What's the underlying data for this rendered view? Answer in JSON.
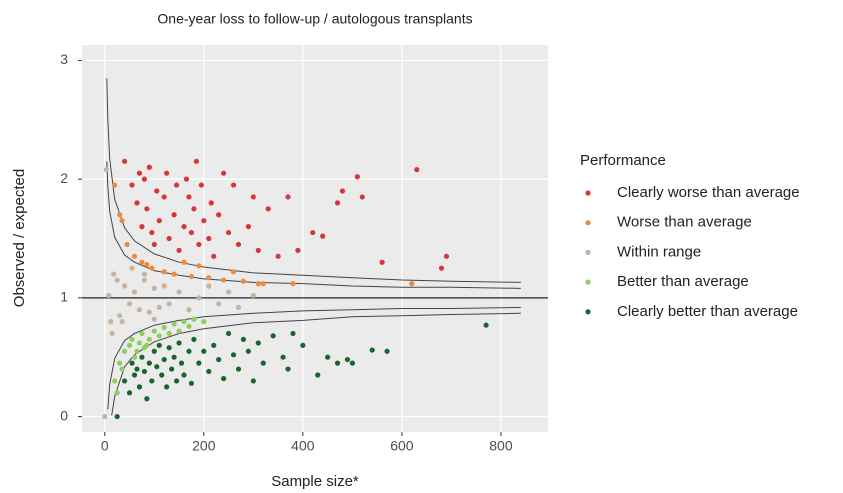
{
  "chart_data": {
    "type": "scatter",
    "title": "One-year loss to follow-up / autologous transplants",
    "x_label": "Sample size*",
    "y_label": "Observed / expected",
    "xlim": [
      -46,
      895
    ],
    "ylim": [
      -0.13,
      3.13
    ],
    "xticks": [
      0,
      200,
      400,
      600,
      800
    ],
    "yticks": [
      0,
      1,
      2,
      3
    ],
    "grid": true,
    "reference_line": 1,
    "legend": {
      "title": "Performance",
      "position": "right"
    },
    "series": [
      {
        "name": "Clearly worse than average",
        "color": "#d6363a",
        "x": [
          40,
          55,
          65,
          70,
          75,
          80,
          85,
          90,
          95,
          100,
          105,
          110,
          120,
          125,
          130,
          140,
          145,
          150,
          160,
          165,
          170,
          175,
          180,
          185,
          190,
          195,
          200,
          210,
          215,
          220,
          230,
          240,
          250,
          260,
          270,
          290,
          300,
          310,
          330,
          350,
          370,
          390,
          420,
          440,
          470,
          480,
          510,
          520,
          560,
          630,
          680,
          690
        ],
        "values": [
          2.15,
          1.95,
          1.8,
          2.05,
          1.6,
          2.0,
          1.75,
          2.1,
          1.55,
          1.45,
          1.9,
          1.65,
          1.85,
          2.05,
          1.5,
          1.7,
          1.95,
          1.4,
          1.6,
          2.0,
          1.85,
          1.55,
          1.75,
          2.15,
          1.45,
          1.95,
          1.65,
          1.5,
          1.8,
          1.35,
          1.7,
          2.05,
          1.55,
          1.95,
          1.45,
          1.6,
          1.85,
          1.4,
          1.75,
          1.35,
          1.85,
          1.4,
          1.55,
          1.52,
          1.8,
          1.9,
          2.02,
          1.85,
          1.3,
          2.08,
          1.25,
          1.35
        ]
      },
      {
        "name": "Worse than average",
        "color": "#ee8a3c",
        "x": [
          20,
          30,
          35,
          45,
          60,
          75,
          85,
          95,
          120,
          140,
          160,
          175,
          190,
          210,
          240,
          260,
          280,
          310,
          320,
          380,
          620
        ],
        "values": [
          1.95,
          1.7,
          1.65,
          1.45,
          1.35,
          1.3,
          1.28,
          1.25,
          1.22,
          1.2,
          1.3,
          1.18,
          1.27,
          1.17,
          1.15,
          1.22,
          1.14,
          1.12,
          1.12,
          1.12,
          1.12
        ]
      },
      {
        "name": "Within range",
        "color": "#c9b39c",
        "x": [
          3,
          8,
          12,
          18,
          25,
          30,
          40,
          50,
          60,
          70,
          80,
          90,
          100,
          110,
          120,
          130,
          150,
          170,
          190,
          210,
          230,
          250,
          270,
          300,
          15,
          35,
          55,
          80,
          100,
          0
        ],
        "values": [
          2.08,
          1.02,
          0.8,
          1.2,
          1.15,
          0.85,
          1.1,
          0.95,
          1.05,
          0.9,
          1.15,
          0.88,
          1.08,
          0.92,
          1.1,
          0.95,
          1.05,
          0.9,
          1.0,
          1.1,
          0.95,
          1.05,
          0.92,
          1.02,
          0.7,
          0.8,
          1.25,
          1.2,
          0.82,
          0.0
        ]
      },
      {
        "name": "Better than average",
        "color": "#8ccf5c",
        "x": [
          20,
          30,
          40,
          50,
          55,
          60,
          70,
          75,
          80,
          90,
          100,
          110,
          120,
          130,
          140,
          150,
          160,
          170,
          180,
          200,
          25,
          35,
          65,
          85
        ],
        "values": [
          0.3,
          0.45,
          0.55,
          0.6,
          0.65,
          0.5,
          0.62,
          0.7,
          0.58,
          0.65,
          0.72,
          0.68,
          0.75,
          0.7,
          0.78,
          0.72,
          0.8,
          0.76,
          0.82,
          0.8,
          0.2,
          0.4,
          0.55,
          0.6
        ]
      },
      {
        "name": "Clearly better than average",
        "color": "#17662c",
        "x": [
          25,
          40,
          50,
          55,
          60,
          65,
          70,
          75,
          80,
          85,
          90,
          95,
          100,
          105,
          110,
          115,
          120,
          125,
          130,
          135,
          140,
          145,
          150,
          155,
          160,
          170,
          175,
          180,
          190,
          200,
          210,
          220,
          230,
          240,
          250,
          260,
          270,
          280,
          290,
          300,
          310,
          320,
          340,
          360,
          370,
          380,
          400,
          430,
          450,
          470,
          490,
          500,
          540,
          570,
          770
        ],
        "values": [
          0.0,
          0.3,
          0.2,
          0.45,
          0.35,
          0.4,
          0.25,
          0.5,
          0.38,
          0.15,
          0.45,
          0.3,
          0.55,
          0.42,
          0.6,
          0.35,
          0.48,
          0.25,
          0.58,
          0.4,
          0.5,
          0.3,
          0.62,
          0.45,
          0.35,
          0.55,
          0.28,
          0.65,
          0.45,
          0.55,
          0.38,
          0.6,
          0.48,
          0.32,
          0.7,
          0.52,
          0.4,
          0.65,
          0.55,
          0.3,
          0.62,
          0.45,
          0.68,
          0.5,
          0.4,
          0.7,
          0.6,
          0.35,
          0.5,
          0.45,
          0.48,
          0.45,
          0.56,
          0.55,
          0.77
        ]
      }
    ],
    "limits": [
      {
        "x": [
          4,
          6,
          10,
          20,
          40,
          60,
          100,
          150,
          200,
          300,
          400,
          500,
          600,
          700,
          840
        ],
        "values": [
          2.85,
          2.51,
          2.17,
          1.83,
          1.59,
          1.48,
          1.37,
          1.3,
          1.26,
          1.21,
          1.19,
          1.17,
          1.15,
          1.14,
          1.13
        ]
      },
      {
        "x": [
          4,
          6,
          10,
          20,
          40,
          60,
          100,
          150,
          200,
          300,
          400,
          500,
          600,
          700,
          840
        ],
        "values": [
          2.15,
          1.94,
          1.73,
          1.51,
          1.36,
          1.3,
          1.23,
          1.19,
          1.16,
          1.13,
          1.12,
          1.1,
          1.09,
          1.09,
          1.08
        ]
      },
      {
        "x": [
          6,
          10,
          20,
          40,
          60,
          100,
          150,
          200,
          300,
          400,
          500,
          600,
          700,
          840
        ],
        "values": [
          0.06,
          0.27,
          0.49,
          0.64,
          0.7,
          0.77,
          0.81,
          0.84,
          0.87,
          0.89,
          0.9,
          0.91,
          0.91,
          0.92
        ]
      },
      {
        "x": [
          14,
          20,
          40,
          60,
          100,
          150,
          200,
          300,
          400,
          500,
          600,
          700,
          840
        ],
        "values": [
          0.01,
          0.17,
          0.42,
          0.52,
          0.63,
          0.7,
          0.74,
          0.79,
          0.81,
          0.84,
          0.85,
          0.86,
          0.87
        ]
      }
    ],
    "limit_color": "#444444"
  }
}
